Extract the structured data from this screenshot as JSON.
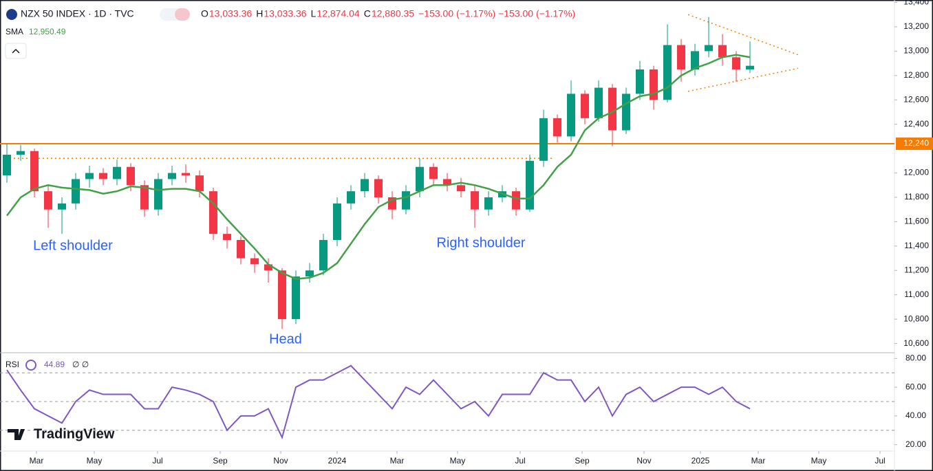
{
  "header": {
    "symbol": "NZX 50 INDEX · 1D · TVC",
    "ohlc": [
      {
        "key": "O",
        "value": "13,033.36"
      },
      {
        "key": "H",
        "value": "13,033.36"
      },
      {
        "key": "L",
        "value": "12,874.04"
      },
      {
        "key": "C",
        "value": "12,880.35"
      }
    ],
    "change": "−153.00 (−1.17%) −153.00 (−1.17%)",
    "brand": "TradingView"
  },
  "chart_data": [
    {
      "type": "candlestick",
      "grid": false,
      "x": [
        1,
        3,
        5,
        7,
        9,
        11,
        13,
        15,
        17,
        19,
        21,
        23,
        25,
        27,
        29,
        31,
        33,
        35,
        37,
        39,
        41,
        43,
        45,
        47,
        49,
        51,
        53,
        55,
        57,
        59,
        61,
        63,
        65,
        67,
        69,
        71,
        73,
        75,
        77,
        79,
        81,
        83,
        85,
        87,
        89,
        91,
        93,
        95,
        97,
        99,
        101,
        103,
        105,
        107,
        109
      ],
      "open": [
        11980,
        12150,
        12180,
        11850,
        11700,
        11750,
        11950,
        12000,
        11950,
        12050,
        11900,
        11700,
        11950,
        12000,
        11980,
        11850,
        11500,
        11450,
        11300,
        11250,
        11200,
        10800,
        11150,
        11200,
        11450,
        11750,
        11850,
        11950,
        11800,
        11700,
        11850,
        12050,
        11950,
        11900,
        11850,
        11700,
        11800,
        11850,
        11700,
        12100,
        12450,
        12300,
        12650,
        12450,
        12700,
        12350,
        12650,
        12850,
        12600,
        13050,
        12850,
        13000,
        13050,
        12950,
        12850
      ],
      "high": [
        12240,
        12230,
        12200,
        11900,
        11800,
        12000,
        12060,
        12040,
        12110,
        12080,
        11940,
        12000,
        12060,
        12070,
        12020,
        11880,
        11560,
        11480,
        11340,
        11300,
        11220,
        11200,
        11260,
        11500,
        11800,
        11900,
        12000,
        11980,
        11850,
        11900,
        12120,
        12080,
        12000,
        11960,
        11900,
        11850,
        11900,
        11880,
        12150,
        12520,
        12480,
        12760,
        12680,
        12760,
        12730,
        12700,
        12920,
        12880,
        13220,
        13100,
        13060,
        13280,
        13140,
        13000,
        13080
      ],
      "low": [
        11920,
        12100,
        11800,
        11550,
        11500,
        11700,
        11880,
        11900,
        11900,
        11850,
        11640,
        11650,
        11900,
        11920,
        11800,
        11450,
        11380,
        11250,
        11180,
        11100,
        10720,
        10760,
        11100,
        11160,
        11400,
        11700,
        11800,
        11750,
        11620,
        11660,
        11800,
        11900,
        11850,
        11800,
        11550,
        11650,
        11760,
        11650,
        11680,
        12050,
        12250,
        12260,
        12400,
        12420,
        12220,
        12320,
        12600,
        12520,
        12580,
        12750,
        12800,
        12950,
        12880,
        12750,
        12820
      ],
      "close": [
        12150,
        12180,
        11850,
        11700,
        11750,
        11950,
        12000,
        11950,
        12050,
        11900,
        11700,
        11950,
        12000,
        11980,
        11850,
        11500,
        11450,
        11300,
        11250,
        11200,
        10800,
        11150,
        11200,
        11450,
        11750,
        11850,
        11950,
        11800,
        11700,
        11850,
        12050,
        11950,
        11900,
        11850,
        11700,
        11800,
        11850,
        11700,
        12100,
        12450,
        12300,
        12650,
        12450,
        12700,
        12350,
        12650,
        12850,
        12600,
        13050,
        12850,
        13000,
        13050,
        12950,
        12850,
        12880
      ],
      "up_color": "#089981",
      "down_color": "#f23645",
      "sma": {
        "name": "SMA",
        "last_label": "12,950.49",
        "color": "#43a047",
        "values": [
          11650,
          11800,
          11870,
          11900,
          11880,
          11870,
          11860,
          11830,
          11850,
          11890,
          11880,
          11860,
          11870,
          11870,
          11850,
          11750,
          11620,
          11500,
          11380,
          11250,
          11180,
          11130,
          11140,
          11180,
          11260,
          11420,
          11580,
          11720,
          11780,
          11800,
          11850,
          11900,
          11900,
          11920,
          11900,
          11870,
          11830,
          11790,
          11790,
          11900,
          12050,
          12150,
          12350,
          12450,
          12500,
          12570,
          12630,
          12650,
          12700,
          12800,
          12860,
          12900,
          12950,
          12970,
          12950
        ]
      },
      "hline": {
        "value": 12240,
        "label": "12,240",
        "color": "#f57c00"
      },
      "trendlines": [
        {
          "x": [
            2,
            80.5
          ],
          "y": [
            12120,
            12120
          ],
          "color": "#f57c00"
        },
        {
          "x": [
            100,
            116
          ],
          "y": [
            13300,
            12970
          ],
          "color": "#f57c00"
        },
        {
          "x": [
            100,
            116
          ],
          "y": [
            12670,
            12860
          ],
          "color": "#f57c00"
        }
      ],
      "annotations": [
        "Left shoulder",
        "Head",
        "Right shoulder"
      ],
      "xlim": [
        0,
        130
      ],
      "ylim": [
        10530,
        13420
      ],
      "yticks": [
        {
          "value": 10600,
          "label": "10,600"
        },
        {
          "value": 10800,
          "label": "10,800"
        },
        {
          "value": 11000,
          "label": "11,000"
        },
        {
          "value": 11200,
          "label": "11,200"
        },
        {
          "value": 11400,
          "label": "11,400"
        },
        {
          "value": 11600,
          "label": "11,600"
        },
        {
          "value": 11800,
          "label": "11,800"
        },
        {
          "value": 12000,
          "label": "12,000"
        },
        {
          "value": 12400,
          "label": "12,400"
        },
        {
          "value": 12600,
          "label": "12,600"
        },
        {
          "value": 12800,
          "label": "12,800"
        },
        {
          "value": 13000,
          "label": "13,000"
        },
        {
          "value": 13200,
          "label": "13,200"
        },
        {
          "value": 13400,
          "label": "13,400"
        }
      ]
    },
    {
      "type": "line",
      "name": "RSI",
      "last_label": "44.89",
      "flags": "∅ ∅",
      "color": "#7e57c2",
      "x": [
        1,
        3,
        5,
        7,
        9,
        11,
        13,
        15,
        17,
        19,
        21,
        23,
        25,
        27,
        29,
        31,
        33,
        35,
        37,
        39,
        41,
        43,
        45,
        47,
        49,
        51,
        53,
        55,
        57,
        59,
        61,
        63,
        65,
        67,
        69,
        71,
        73,
        75,
        77,
        79,
        81,
        83,
        85,
        87,
        89,
        91,
        93,
        95,
        97,
        99,
        101,
        103,
        105,
        107,
        109
      ],
      "values": [
        72,
        58,
        45,
        40,
        35,
        50,
        58,
        55,
        55,
        55,
        45,
        45,
        60,
        58,
        55,
        50,
        30,
        40,
        40,
        45,
        25,
        60,
        65,
        65,
        70,
        75,
        65,
        55,
        45,
        60,
        55,
        65,
        55,
        45,
        50,
        40,
        55,
        55,
        55,
        70,
        65,
        65,
        50,
        60,
        40,
        55,
        60,
        50,
        55,
        60,
        60,
        55,
        60,
        50,
        45
      ],
      "bands": [
        70,
        50,
        30
      ],
      "xlim": [
        0,
        130
      ],
      "ylim": [
        16,
        84
      ],
      "yticks": [
        {
          "value": 20,
          "label": "20.00"
        },
        {
          "value": 40,
          "label": "40.00"
        },
        {
          "value": 60,
          "label": "60.00"
        },
        {
          "value": 80,
          "label": "80.00"
        }
      ],
      "xticks": [
        {
          "value": 5.3,
          "label": "Mar"
        },
        {
          "value": 13.7,
          "label": "May"
        },
        {
          "value": 22.9,
          "label": "Jul"
        },
        {
          "value": 32,
          "label": "Sep"
        },
        {
          "value": 40.8,
          "label": "Nov"
        },
        {
          "value": 49,
          "label": "2024"
        },
        {
          "value": 57.7,
          "label": "Mar"
        },
        {
          "value": 66.5,
          "label": "May"
        },
        {
          "value": 75.6,
          "label": "Jul"
        },
        {
          "value": 84.6,
          "label": "Sep"
        },
        {
          "value": 93.6,
          "label": "Nov"
        },
        {
          "value": 101.8,
          "label": "2025"
        },
        {
          "value": 110.2,
          "label": "Mar"
        },
        {
          "value": 119,
          "label": "May"
        },
        {
          "value": 127.9,
          "label": "Jul"
        }
      ]
    }
  ]
}
